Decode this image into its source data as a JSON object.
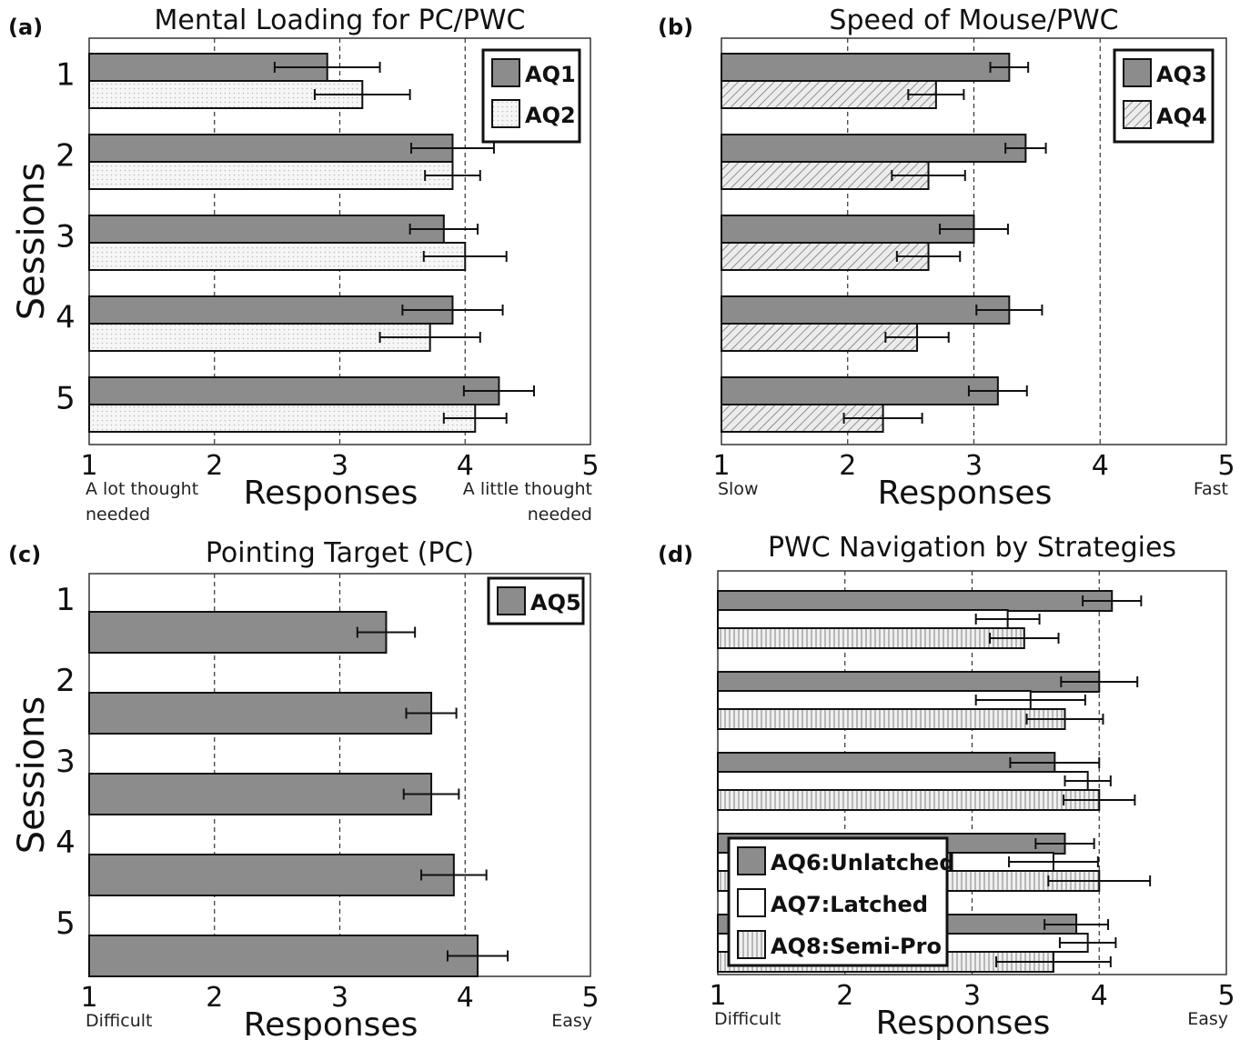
{
  "chart_data": [
    {
      "type": "bar",
      "panel": "(a)",
      "title": "Mental Loading for PC/PWC",
      "xlabel": "Responses",
      "ylabel": "Sessions",
      "categories": [
        "1",
        "2",
        "3",
        "4",
        "5"
      ],
      "xticks": [
        "1",
        "2",
        "3",
        "4",
        "5"
      ],
      "xlim": [
        1,
        5
      ],
      "left_anchor": [
        "A lot thought",
        "needed"
      ],
      "right_anchor": [
        "A little thought",
        "needed"
      ],
      "series": [
        {
          "name": "AQ1",
          "values": [
            2.9,
            3.9,
            3.83,
            3.9,
            4.27
          ],
          "err": [
            0.42,
            0.33,
            0.27,
            0.4,
            0.28
          ],
          "pattern": "gray"
        },
        {
          "name": "AQ2",
          "values": [
            3.18,
            3.9,
            4.0,
            3.72,
            4.08
          ],
          "err": [
            0.38,
            0.22,
            0.33,
            0.4,
            0.25
          ],
          "pattern": "dots"
        }
      ],
      "legend": "top-right"
    },
    {
      "type": "bar",
      "panel": "(b)",
      "title": "Speed of Mouse/PWC",
      "xlabel": "Responses",
      "ylabel": "",
      "categories": [
        "1",
        "2",
        "3",
        "4",
        "5"
      ],
      "xticks": [
        "1",
        "2",
        "3",
        "4",
        "5"
      ],
      "xlim": [
        1,
        5
      ],
      "left_anchor": [
        "Slow"
      ],
      "right_anchor": [
        "Fast"
      ],
      "series": [
        {
          "name": "AQ3",
          "values": [
            3.28,
            3.41,
            3.0,
            3.28,
            3.19
          ],
          "err": [
            0.15,
            0.16,
            0.27,
            0.26,
            0.23
          ],
          "pattern": "gray"
        },
        {
          "name": "AQ4",
          "values": [
            2.7,
            2.64,
            2.64,
            2.55,
            2.28
          ],
          "err": [
            0.22,
            0.29,
            0.25,
            0.25,
            0.31
          ],
          "pattern": "diag"
        }
      ],
      "legend": "top-right"
    },
    {
      "type": "bar",
      "panel": "(c)",
      "title": "Pointing Target (PC)",
      "xlabel": "Responses",
      "ylabel": "Sessions",
      "categories": [
        "1",
        "2",
        "3",
        "4",
        "5"
      ],
      "xticks": [
        "1",
        "2",
        "3",
        "4",
        "5"
      ],
      "xlim": [
        1,
        5
      ],
      "left_anchor": [
        "Difficult"
      ],
      "right_anchor": [
        "Easy"
      ],
      "series": [
        {
          "name": "AQ5",
          "values": [
            3.37,
            3.73,
            3.73,
            3.91,
            4.1
          ],
          "err": [
            0.23,
            0.2,
            0.22,
            0.26,
            0.24
          ],
          "pattern": "gray"
        }
      ],
      "legend": "top-right"
    },
    {
      "type": "bar",
      "panel": "(d)",
      "title": "PWC Navigation by Strategies",
      "xlabel": "Responses",
      "ylabel": "",
      "categories": [
        "1",
        "2",
        "3",
        "4",
        "5"
      ],
      "xticks": [
        "1",
        "2",
        "3",
        "4",
        "5"
      ],
      "xlim": [
        1,
        5
      ],
      "left_anchor": [
        "Difficult"
      ],
      "right_anchor": [
        "Easy"
      ],
      "series": [
        {
          "name": "AQ6:Unlatched",
          "values": [
            4.1,
            4.0,
            3.65,
            3.73,
            3.82
          ],
          "err": [
            0.23,
            0.3,
            0.35,
            0.23,
            0.25
          ],
          "pattern": "gray"
        },
        {
          "name": "AQ7:Latched",
          "values": [
            3.28,
            3.46,
            3.91,
            3.64,
            3.91
          ],
          "err": [
            0.25,
            0.43,
            0.18,
            0.35,
            0.22
          ],
          "pattern": "white"
        },
        {
          "name": "AQ8:Semi-Pro",
          "values": [
            3.41,
            3.73,
            4.0,
            4.0,
            3.64
          ],
          "err": [
            0.27,
            0.3,
            0.28,
            0.4,
            0.45
          ],
          "pattern": "vlines"
        }
      ],
      "legend": "bottom-left"
    }
  ]
}
